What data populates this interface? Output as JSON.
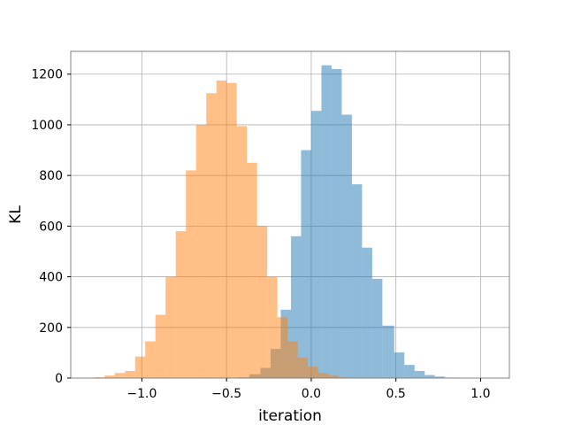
{
  "chart_data": {
    "type": "histogram",
    "title": "",
    "xlabel": "iteration",
    "ylabel": "KL",
    "xlim": [
      -1.42,
      1.17
    ],
    "ylim": [
      0,
      1290
    ],
    "xticks": [
      {
        "value": -1.0,
        "label": "−1.0"
      },
      {
        "value": -0.5,
        "label": "−0.5"
      },
      {
        "value": 0.0,
        "label": "0.0"
      },
      {
        "value": 0.5,
        "label": "0.5"
      },
      {
        "value": 1.0,
        "label": "1.0"
      }
    ],
    "yticks": [
      {
        "value": 0,
        "label": "0"
      },
      {
        "value": 200,
        "label": "200"
      },
      {
        "value": 400,
        "label": "400"
      },
      {
        "value": 600,
        "label": "600"
      },
      {
        "value": 800,
        "label": "800"
      },
      {
        "value": 1000,
        "label": "1000"
      },
      {
        "value": 1200,
        "label": "1200"
      }
    ],
    "grid": true,
    "series": [
      {
        "color": "#1f77b4",
        "alpha": 0.5,
        "bins": [
          {
            "x0": -0.43,
            "x1": -0.365,
            "count": 3
          },
          {
            "x0": -0.365,
            "x1": -0.3,
            "count": 15
          },
          {
            "x0": -0.3,
            "x1": -0.24,
            "count": 40
          },
          {
            "x0": -0.24,
            "x1": -0.18,
            "count": 115
          },
          {
            "x0": -0.18,
            "x1": -0.12,
            "count": 270
          },
          {
            "x0": -0.12,
            "x1": -0.06,
            "count": 560
          },
          {
            "x0": -0.06,
            "x1": 0.0,
            "count": 900
          },
          {
            "x0": 0.0,
            "x1": 0.06,
            "count": 1055
          },
          {
            "x0": 0.06,
            "x1": 0.12,
            "count": 1235
          },
          {
            "x0": 0.12,
            "x1": 0.18,
            "count": 1220
          },
          {
            "x0": 0.18,
            "x1": 0.24,
            "count": 1040
          },
          {
            "x0": 0.24,
            "x1": 0.3,
            "count": 765
          },
          {
            "x0": 0.3,
            "x1": 0.36,
            "count": 515
          },
          {
            "x0": 0.36,
            "x1": 0.42,
            "count": 392
          },
          {
            "x0": 0.42,
            "x1": 0.49,
            "count": 207
          },
          {
            "x0": 0.49,
            "x1": 0.55,
            "count": 101
          },
          {
            "x0": 0.55,
            "x1": 0.61,
            "count": 52
          },
          {
            "x0": 0.61,
            "x1": 0.67,
            "count": 28
          },
          {
            "x0": 0.67,
            "x1": 0.73,
            "count": 12
          },
          {
            "x0": 0.73,
            "x1": 0.79,
            "count": 6
          },
          {
            "x0": 0.79,
            "x1": 0.85,
            "count": 2
          }
        ]
      },
      {
        "color": "#ff7f0e",
        "alpha": 0.5,
        "bins": [
          {
            "x0": -1.28,
            "x1": -1.22,
            "count": 3
          },
          {
            "x0": -1.22,
            "x1": -1.16,
            "count": 10
          },
          {
            "x0": -1.16,
            "x1": -1.1,
            "count": 20
          },
          {
            "x0": -1.1,
            "x1": -1.04,
            "count": 28
          },
          {
            "x0": -1.04,
            "x1": -0.98,
            "count": 85
          },
          {
            "x0": -0.98,
            "x1": -0.92,
            "count": 145
          },
          {
            "x0": -0.92,
            "x1": -0.86,
            "count": 250
          },
          {
            "x0": -0.86,
            "x1": -0.8,
            "count": 400
          },
          {
            "x0": -0.8,
            "x1": -0.74,
            "count": 580
          },
          {
            "x0": -0.74,
            "x1": -0.68,
            "count": 820
          },
          {
            "x0": -0.68,
            "x1": -0.62,
            "count": 1000
          },
          {
            "x0": -0.62,
            "x1": -0.56,
            "count": 1125
          },
          {
            "x0": -0.56,
            "x1": -0.5,
            "count": 1175
          },
          {
            "x0": -0.5,
            "x1": -0.44,
            "count": 1165
          },
          {
            "x0": -0.44,
            "x1": -0.38,
            "count": 995
          },
          {
            "x0": -0.38,
            "x1": -0.32,
            "count": 850
          },
          {
            "x0": -0.32,
            "x1": -0.26,
            "count": 600
          },
          {
            "x0": -0.26,
            "x1": -0.2,
            "count": 400
          },
          {
            "x0": -0.2,
            "x1": -0.14,
            "count": 240
          },
          {
            "x0": -0.14,
            "x1": -0.08,
            "count": 145
          },
          {
            "x0": -0.08,
            "x1": -0.02,
            "count": 80
          },
          {
            "x0": -0.02,
            "x1": 0.04,
            "count": 45
          },
          {
            "x0": 0.04,
            "x1": 0.1,
            "count": 20
          },
          {
            "x0": 0.1,
            "x1": 0.16,
            "count": 10
          },
          {
            "x0": 0.16,
            "x1": 0.22,
            "count": 3
          }
        ]
      }
    ]
  }
}
